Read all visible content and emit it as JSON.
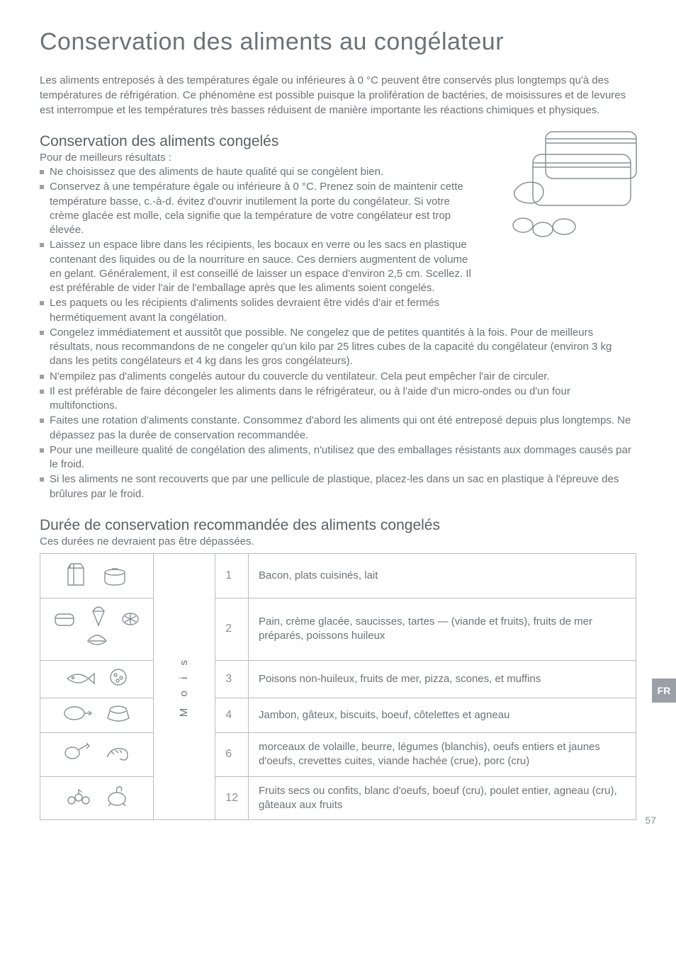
{
  "page_title": "Conservation des aliments au congélateur",
  "intro": "Les aliments entreposés à des températures égale ou inférieures à 0 °C peuvent être conservés plus longtemps qu'à des températures de réfrigération. Ce phénomène est possible puisque la prolifération de bactéries, de moisissures et de levures est interrompue et les températures très basses réduisent de manière importante les réactions chimiques et physiques.",
  "section1": {
    "heading": "Conservation des aliments congelés",
    "subtitle": "Pour de meilleurs résultats :",
    "bullets": [
      "Ne choisissez que des aliments de haute qualité qui se congèlent bien.",
      "Conservez à une température égale ou inférieure à 0 °C.  Prenez soin de maintenir cette température basse, c.-à-d. évitez d'ouvrir inutilement la porte du congélateur.  Si votre crème glacée est molle, cela signifie que la température de votre congélateur est trop élevée.",
      "Laissez un espace libre dans les récipients, les bocaux en verre ou les sacs en plastique contenant des liquides ou de la nourriture en sauce. Ces derniers augmentent de volume en gelant. Généralement, il est conseillé de laisser un espace d'environ 2,5 cm. Scellez. Il est préférable de vider l'air de l'emballage après que les aliments soient congelés.",
      "Les paquets ou les récipients d'aliments solides devraient être vidés d'air et fermés hermétiquement avant la congélation.",
      "Congelez immédiatement et aussitôt que possible.  Ne congelez que de petites quantités à la fois.  Pour de meilleurs résultats, nous recommandons de ne congeler qu'un kilo par 25 litres cubes de la capacité du congélateur (environ 3 kg dans les petits congélateurs et 4 kg dans les gros congélateurs).",
      "N'empilez pas d'aliments congelés autour du couvercle du ventilateur.  Cela peut empêcher l'air de circuler.",
      "Il est préférable de faire décongeler les aliments dans le réfrigérateur, ou à l'aide d'un micro-ondes ou d'un four multifonctions.",
      "Faites une rotation d'aliments constante. Consommez d'abord les aliments qui ont été entreposé depuis plus longtemps. Ne dépassez pas la durée de conservation recommandée.",
      "Pour une meilleure qualité de congélation des aliments, n'utilisez que des emballages résistants aux dommages causés par le froid.",
      "Si les aliments ne sont recouverts que par une pellicule de plastique, placez-les dans un sac en plastique à l'épreuve des brûlures par le froid."
    ],
    "narrow_count": 4
  },
  "section2": {
    "heading": "Durée de conservation recommandée des aliments congelés",
    "subtitle": "Ces durées ne devraient pas être dépassées.",
    "month_label": "M o i s",
    "rows": [
      {
        "months": "1",
        "desc": "Bacon, plats cuisinés, lait"
      },
      {
        "months": "2",
        "desc": "Pain, crème glacée, saucisses, tartes — (viande et fruits), fruits de mer préparés, poissons huileux"
      },
      {
        "months": "3",
        "desc": "Poisons non-huileux, fruits de mer, pizza, scones, et muffins"
      },
      {
        "months": "4",
        "desc": "Jambon, gâteux, biscuits, boeuf, côtelettes et agneau"
      },
      {
        "months": "6",
        "desc": "morceaux de volaille, beurre, légumes (blanchis), oeufs entiers et jaunes d'oeufs, crevettes cuites, viande hachée (crue), porc (cru)"
      },
      {
        "months": "12",
        "desc": "Fruits secs ou confits, blanc d'oeufs, boeuf (cru), poulet entier, agneau (cru), gâteaux aux fruits"
      }
    ]
  },
  "side_tab": "FR",
  "page_number": "57",
  "colors": {
    "text": "#6b7278",
    "heading": "#5a6066",
    "border": "#b8bcc0",
    "bullet": "#9aa0a6",
    "tab_bg": "#9aa0a6",
    "tab_fg": "#ffffff",
    "icon_stroke": "#8a9096"
  }
}
